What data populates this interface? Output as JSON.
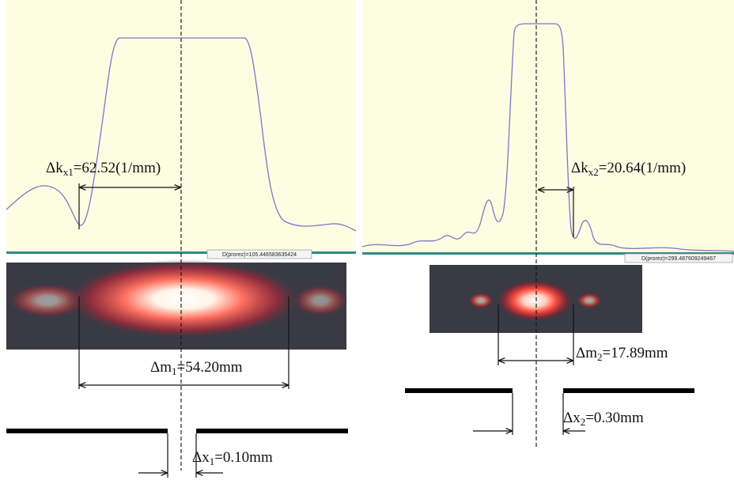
{
  "panels": [
    {
      "readout": "D(prorez)=105.446583635424",
      "dk": {
        "prefix": "Δk",
        "sub": "x1",
        "suffix": "=62.52(1/mm)"
      },
      "dm": {
        "prefix": "Δm",
        "sub": "1",
        "suffix": "=54.20mm"
      },
      "dx": {
        "prefix": "Δx",
        "sub": "1",
        "suffix": "=0.10mm"
      }
    },
    {
      "readout": "D(prorez)=299.487609249467",
      "dk": {
        "prefix": "Δk",
        "sub": "x2",
        "suffix": "=20.64(1/mm)"
      },
      "dm": {
        "prefix": "Δm",
        "sub": "2",
        "suffix": "=17.89mm"
      },
      "dx": {
        "prefix": "Δx",
        "sub": "2",
        "suffix": "=0.30mm"
      }
    }
  ]
}
